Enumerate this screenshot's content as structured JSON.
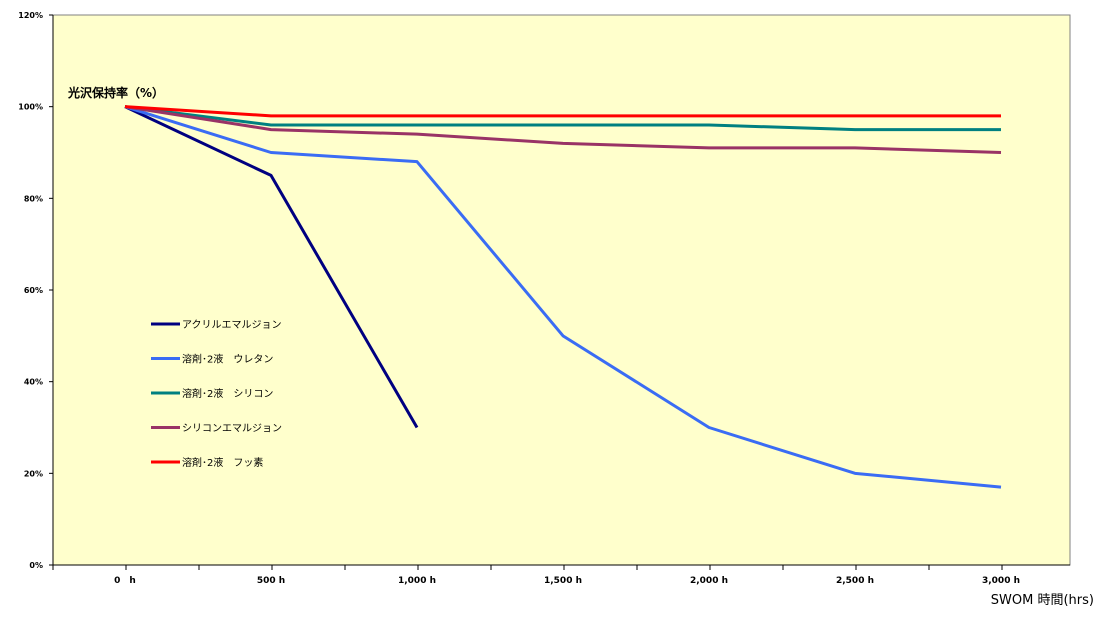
{
  "chart_data": {
    "type": "line",
    "title": "",
    "ylabel": "光沢保持率（%）",
    "xlabel": "SWOM 時間(hrs)",
    "x": [
      0,
      500,
      1000,
      1500,
      2000,
      2500,
      3000
    ],
    "x_tick_labels": [
      "0　h",
      "500 h",
      "1,000 h",
      "1,500 h",
      "2,000 h",
      "2,500 h",
      "3,000 h"
    ],
    "y_tick_labels": [
      "0%",
      "20%",
      "40%",
      "60%",
      "80%",
      "100%",
      "120%"
    ],
    "y_ticks": [
      0,
      20,
      40,
      60,
      80,
      100,
      120
    ],
    "ylim": [
      0,
      120
    ],
    "grid": false,
    "legend_position": "left-inside",
    "background": "#ffffcc",
    "series": [
      {
        "name": "アクリルエマルジョン",
        "color": "#000080",
        "x": [
          0,
          500,
          1000
        ],
        "values": [
          100,
          85,
          30
        ]
      },
      {
        "name": "溶剤･2液　ウレタン",
        "color": "#3a6cf4",
        "x": [
          0,
          500,
          1000,
          1500,
          2000,
          2500,
          3000
        ],
        "values": [
          100,
          90,
          88,
          50,
          30,
          20,
          17
        ]
      },
      {
        "name": "溶剤･2液　シリコン",
        "color": "#008080",
        "x": [
          0,
          500,
          1000,
          1500,
          2000,
          2500,
          3000
        ],
        "values": [
          100,
          96,
          96,
          96,
          96,
          95,
          95
        ]
      },
      {
        "name": "シリコンエマルジョン",
        "color": "#993366",
        "x": [
          0,
          500,
          1000,
          1500,
          2000,
          2500,
          3000
        ],
        "values": [
          100,
          95,
          94,
          92,
          91,
          91,
          90
        ]
      },
      {
        "name": "溶剤･2液　フッ素",
        "color": "#ff0000",
        "x": [
          0,
          500,
          1000,
          1500,
          2000,
          2500,
          3000
        ],
        "values": [
          100,
          98,
          98,
          98,
          98,
          98,
          98
        ]
      }
    ]
  }
}
